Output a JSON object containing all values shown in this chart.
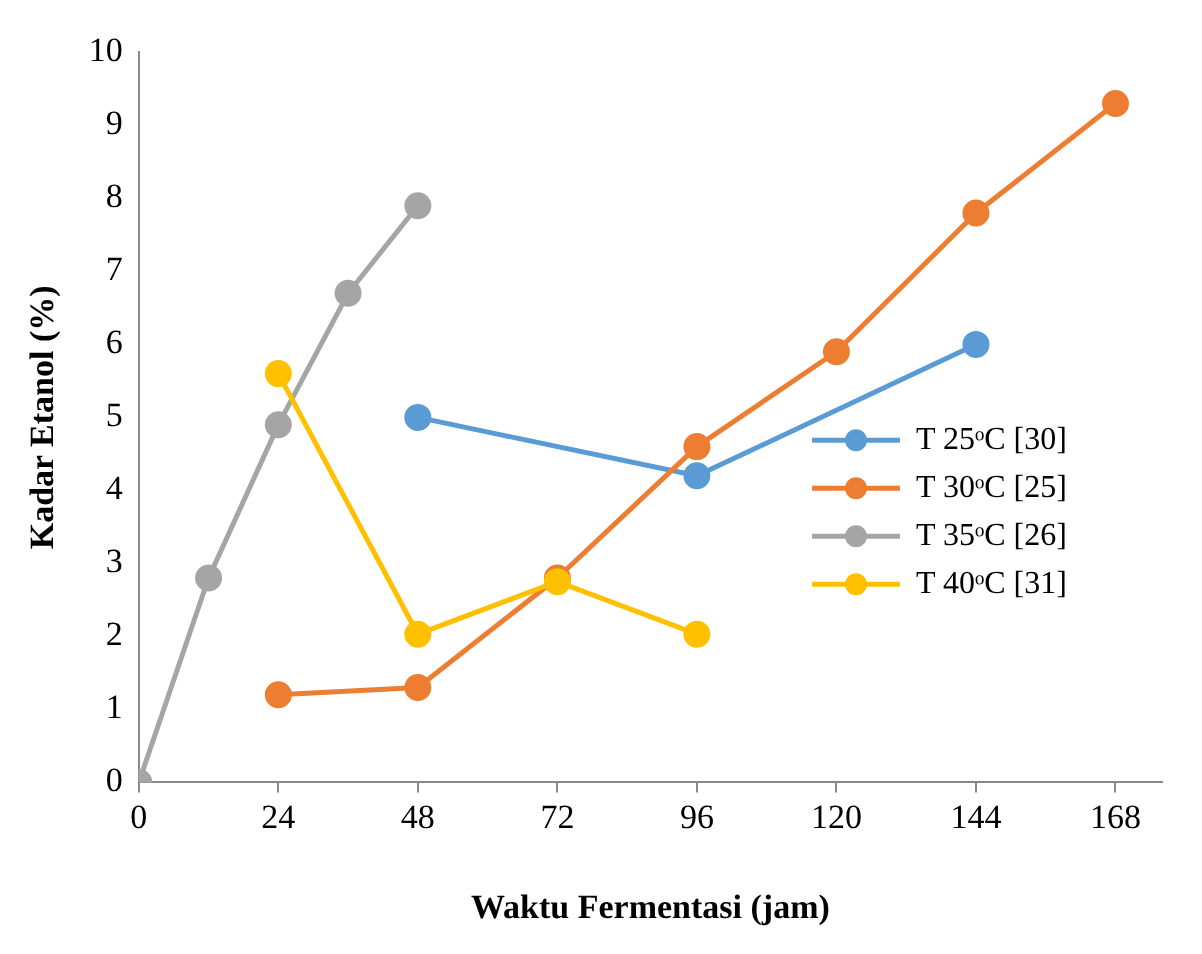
{
  "chart_data": {
    "type": "line",
    "xlabel": "Waktu Fermentasi (jam)",
    "ylabel": "Kadar Etanol (%)",
    "xlim": [
      0,
      176
    ],
    "xticks": [
      0,
      24,
      48,
      72,
      96,
      120,
      144,
      168
    ],
    "ylim": [
      0,
      10
    ],
    "yticks": [
      0,
      1,
      2,
      3,
      4,
      5,
      6,
      7,
      8,
      9,
      10
    ],
    "grid": false,
    "legend": "right",
    "marker": "circle",
    "line_style": "solid",
    "series": [
      {
        "name": "T 25ᵒC [30]",
        "color": "#5b9bd5",
        "x": [
          48,
          96,
          144
        ],
        "values": [
          5.0,
          4.2,
          6.0
        ]
      },
      {
        "name": "T 30ᵒC [25]",
        "color": "#ed7d31",
        "x": [
          24,
          48,
          72,
          96,
          120,
          144,
          168
        ],
        "values": [
          1.2,
          1.3,
          2.8,
          4.6,
          5.9,
          7.8,
          9.3
        ]
      },
      {
        "name": "T 35ᵒC [26]",
        "color": "#a5a5a5",
        "x": [
          0,
          12,
          24,
          36,
          48
        ],
        "values": [
          0,
          2.8,
          4.9,
          6.7,
          7.9
        ]
      },
      {
        "name": "T 40ᵒC [31]",
        "color": "#ffc000",
        "x": [
          24,
          48,
          72,
          96
        ],
        "values": [
          5.6,
          2.03,
          2.75,
          2.03
        ]
      }
    ]
  }
}
